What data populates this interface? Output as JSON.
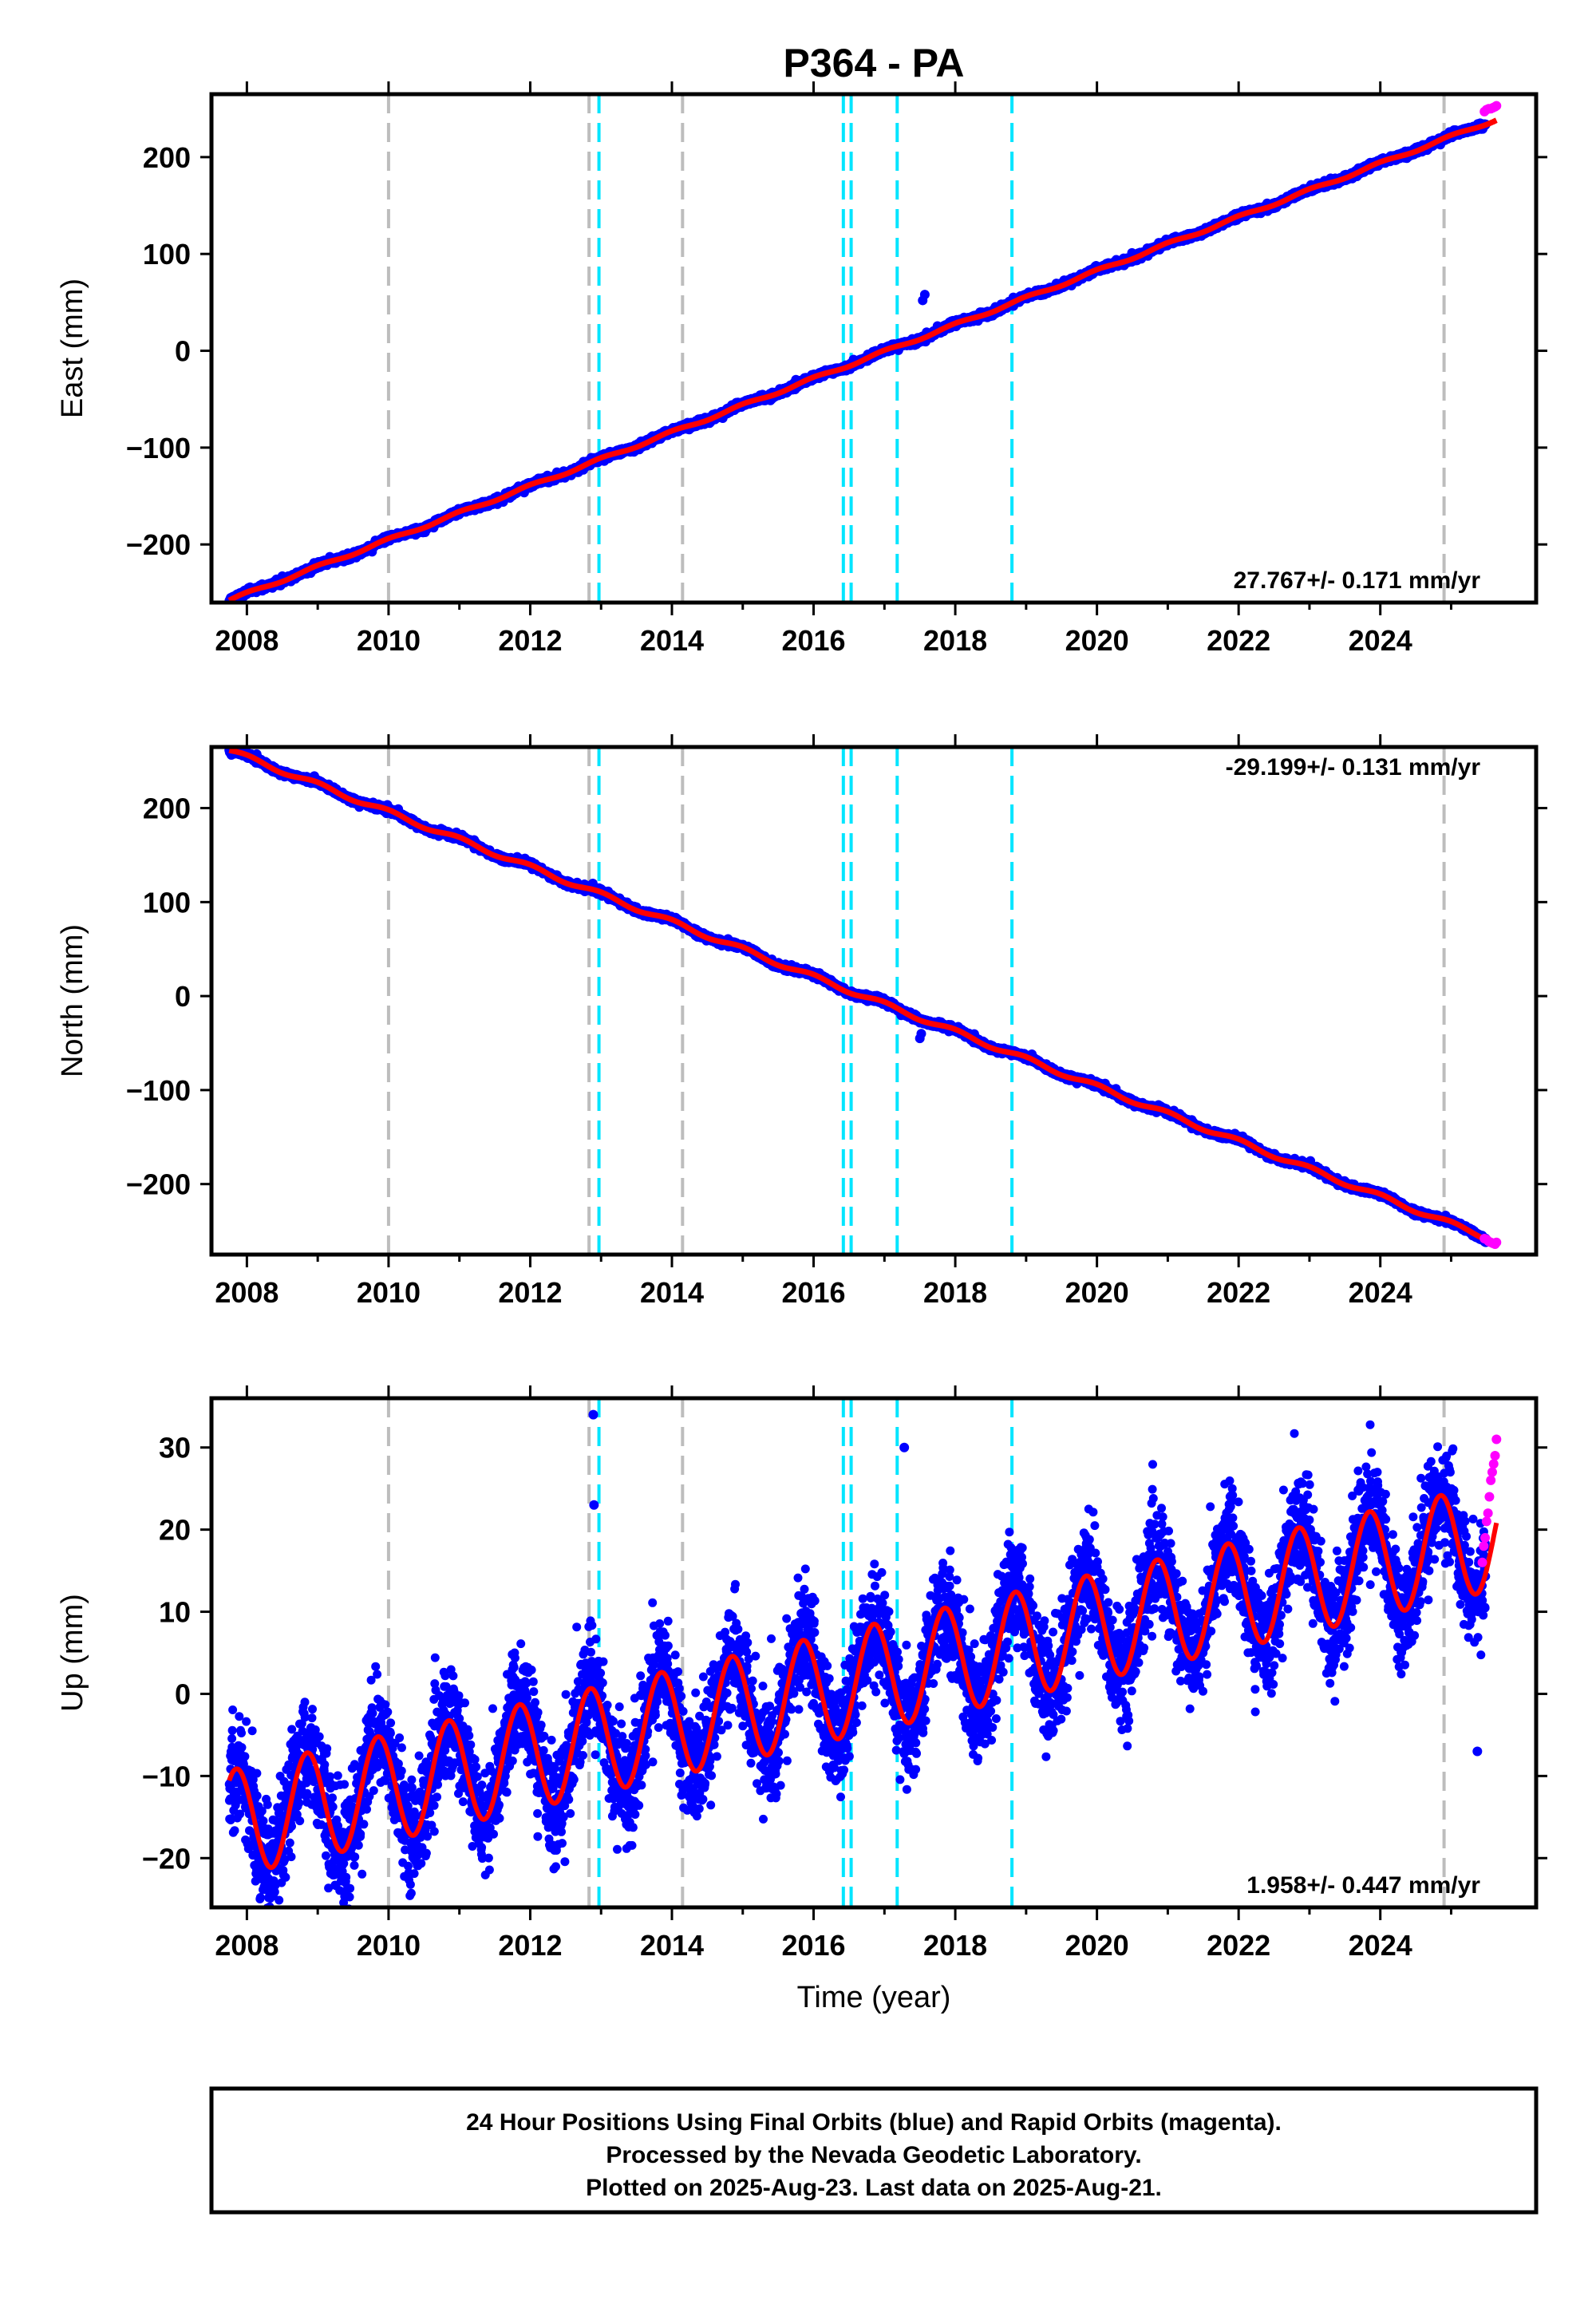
{
  "title": "P364 - PA",
  "colors": {
    "final": "#0000ff",
    "rapid": "#ff00ff",
    "model": "#ff0000",
    "equipment_line": "#bdbdbd",
    "event_line": "#00e5ff"
  },
  "xaxis": {
    "label": "Time (year)",
    "range": [
      2007.5,
      2026.2
    ],
    "ticks": [
      "2008",
      "2010",
      "2012",
      "2014",
      "2016",
      "2018",
      "2020",
      "2022",
      "2024"
    ]
  },
  "vertical_lines": {
    "gray": [
      2010.0,
      2012.83,
      2014.15,
      2024.9
    ],
    "cyan": [
      2012.97,
      2016.42,
      2016.53,
      2017.18,
      2018.8
    ]
  },
  "footer": {
    "line1": "24 Hour Positions Using Final Orbits (blue) and Rapid Orbits (magenta).",
    "line2": "Processed by the Nevada Geodetic Laboratory.",
    "line3": "Plotted on 2025-Aug-23. Last data on 2025-Aug-21."
  },
  "chart_data": [
    {
      "type": "scatter",
      "component": "east",
      "ylabel": "East (mm)",
      "ylim": [
        -260,
        265
      ],
      "yticks": [
        "200",
        "100",
        "0",
        "−100",
        "−200"
      ],
      "yticks_values": [
        200,
        100,
        0,
        -100,
        -200
      ],
      "rate_text": "27.767+/- 0.171 mm/yr",
      "model": {
        "slope": 27.767,
        "ref_year": 2016.6,
        "ref_value": -12,
        "seasonal_amp": 1.5,
        "start": 2007.75,
        "end": 2025.64
      },
      "final_orbits_noise_mm": 1.5,
      "rapid_orbits": {
        "x": [
          2025.47,
          2025.5,
          2025.53,
          2025.56,
          2025.59,
          2025.62,
          2025.64
        ],
        "y": [
          247,
          249,
          250,
          250,
          251,
          252,
          253
        ]
      },
      "outliers": {
        "x": [
          2017.54,
          2017.57
        ],
        "y": [
          52,
          58
        ]
      }
    },
    {
      "type": "scatter",
      "component": "north",
      "ylabel": "North (mm)",
      "ylim": [
        -275,
        265
      ],
      "yticks": [
        "200",
        "100",
        "0",
        "−100",
        "−200"
      ],
      "yticks_values": [
        200,
        100,
        0,
        -100,
        -200
      ],
      "rate_text": "-29.199+/- 0.131 mm/yr",
      "model": {
        "slope": -29.199,
        "ref_year": 2016.6,
        "ref_value": 3,
        "seasonal_amp": 2.5,
        "start": 2007.75,
        "end": 2025.64
      },
      "final_orbits_noise_mm": 1.5,
      "rapid_orbits": {
        "x": [
          2025.47,
          2025.5,
          2025.53,
          2025.56,
          2025.59,
          2025.62,
          2025.64
        ],
        "y": [
          -258,
          -259,
          -261,
          -262,
          -263,
          -264,
          -262
        ]
      },
      "outliers": {
        "x": [
          2017.5,
          2017.52
        ],
        "y": [
          -45,
          -40
        ]
      }
    },
    {
      "type": "scatter",
      "component": "up",
      "ylabel": "Up (mm)",
      "ylim": [
        -26,
        36
      ],
      "yticks": [
        "30",
        "20",
        "10",
        "0",
        "−10",
        "−20"
      ],
      "yticks_values": [
        30,
        20,
        10,
        0,
        -10,
        -20
      ],
      "rate_text": "1.958+/- 0.447 mm/yr",
      "model": {
        "slope": 1.958,
        "ref_year": 2016.6,
        "ref_value": 1.5,
        "seasonal_amp": 6.5,
        "seasonal_phase_year": 2011.85,
        "start": 2007.75,
        "end": 2025.64
      },
      "final_orbits_noise_mm": 3.2,
      "rapid_orbits": {
        "x": [
          2025.44,
          2025.46,
          2025.48,
          2025.5,
          2025.52,
          2025.54,
          2025.56,
          2025.58,
          2025.6,
          2025.62,
          2025.64
        ],
        "y": [
          16,
          18,
          19,
          21,
          22,
          24,
          26,
          27,
          28,
          29,
          31
        ]
      },
      "outliers": {
        "x": [
          2012.89,
          2012.9,
          2017.28,
          2025.37
        ],
        "y": [
          34,
          23,
          30,
          -7
        ]
      }
    }
  ]
}
